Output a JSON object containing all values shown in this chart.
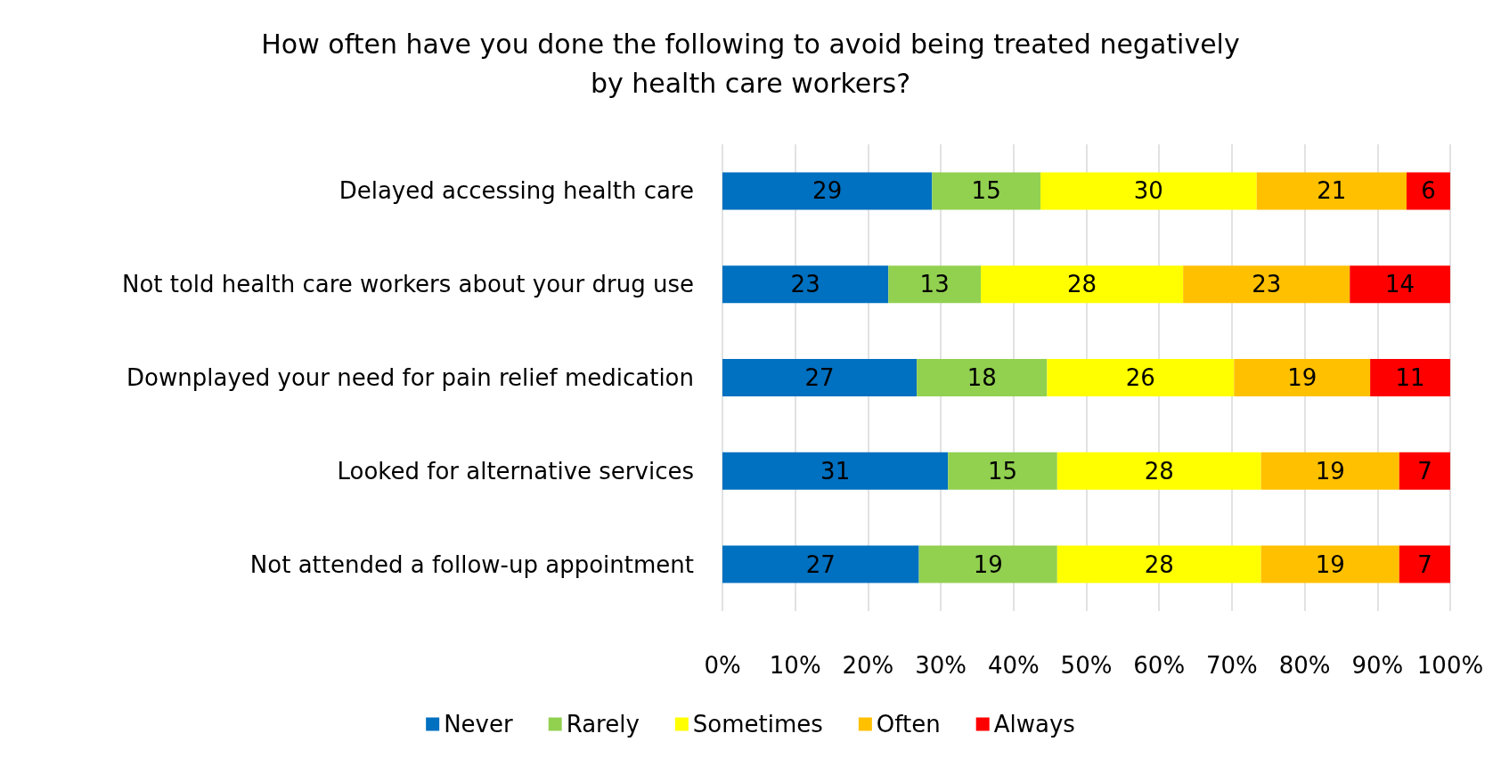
{
  "chart_data": {
    "type": "bar",
    "orientation": "horizontal",
    "stacked": true,
    "title": "How often have you done the following to avoid being treated negatively\nby health care workers?",
    "categories": [
      "Delayed accessing health care",
      "Not told health care workers about your drug use",
      "Downplayed your need for pain relief medication",
      "Looked for alternative services",
      "Not attended a follow-up appointment"
    ],
    "series": [
      {
        "name": "Never",
        "color": "#0070c0",
        "values": [
          28.8,
          22.8,
          26.7,
          31,
          27
        ],
        "value_labels": [
          "29",
          "23",
          "27",
          "31",
          "27"
        ]
      },
      {
        "name": "Rarely",
        "color": "#92d050",
        "values": [
          14.9,
          12.7,
          17.9,
          15,
          19
        ],
        "value_labels": [
          "15",
          "13",
          "18",
          "15",
          "19"
        ]
      },
      {
        "name": "Sometimes",
        "color": "#ffff00",
        "values": [
          29.7,
          27.8,
          25.7,
          28,
          28
        ],
        "value_labels": [
          "30",
          "28",
          "26",
          "28",
          "28"
        ]
      },
      {
        "name": "Often",
        "color": "#ffc000",
        "values": [
          20.6,
          22.9,
          18.7,
          19,
          19
        ],
        "value_labels": [
          "21",
          "23",
          "19",
          "19",
          "19"
        ]
      },
      {
        "name": "Always",
        "color": "#ff0000",
        "values": [
          6.0,
          13.8,
          11.0,
          7,
          7
        ],
        "value_labels": [
          "6",
          "14",
          "11",
          "7",
          "7"
        ]
      }
    ],
    "xlim": [
      0,
      100
    ],
    "xticks": [
      {
        "value": 0,
        "label": "0%"
      },
      {
        "value": 10,
        "label": "10%"
      },
      {
        "value": 20,
        "label": "20%"
      },
      {
        "value": 30,
        "label": "30%"
      },
      {
        "value": 40,
        "label": "40%"
      },
      {
        "value": 50,
        "label": "50%"
      },
      {
        "value": 60,
        "label": "60%"
      },
      {
        "value": 70,
        "label": "70%"
      },
      {
        "value": 80,
        "label": "80%"
      },
      {
        "value": 90,
        "label": "90%"
      },
      {
        "value": 100,
        "label": "100%"
      }
    ],
    "grid": "x",
    "legend": "bottom"
  }
}
